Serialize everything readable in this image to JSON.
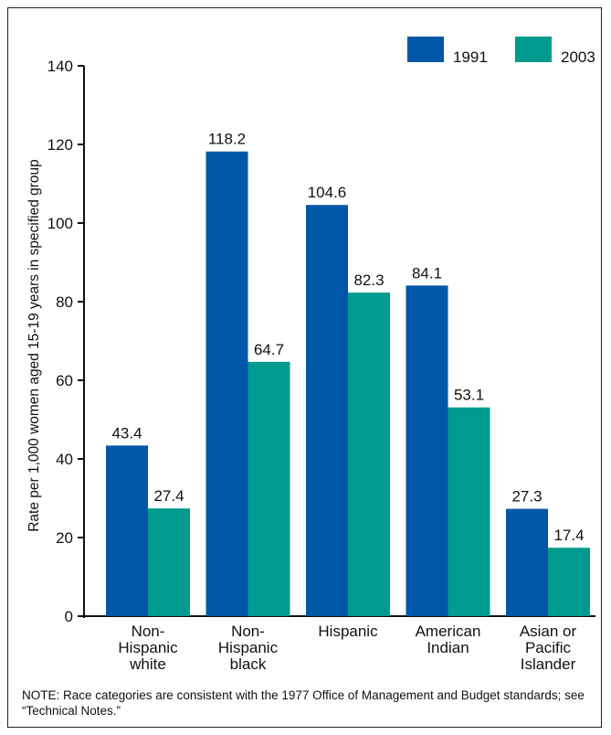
{
  "chart_data": {
    "type": "bar",
    "categories": [
      [
        "Non-",
        "Hispanic",
        "white"
      ],
      [
        "Non-",
        "Hispanic",
        "black"
      ],
      [
        "Hispanic"
      ],
      [
        "American",
        "Indian"
      ],
      [
        "Asian or",
        "Pacific",
        "Islander"
      ]
    ],
    "series": [
      {
        "name": "1991",
        "color": "#0057a8",
        "values": [
          43.4,
          118.2,
          104.6,
          84.1,
          27.3
        ],
        "labels": [
          "43.4",
          "118.2",
          "104.6",
          "84.1",
          "27.3"
        ]
      },
      {
        "name": "2003",
        "color": "#009b8e",
        "values": [
          27.4,
          64.7,
          82.3,
          53.1,
          17.4
        ],
        "labels": [
          "27.4",
          "64.7",
          "82.3",
          "53.1",
          "17.4"
        ]
      }
    ],
    "ylabel": "Rate per 1,000 women aged 15-19 years in specified group",
    "ylim": [
      0,
      140
    ],
    "yticks": [
      "0",
      "20",
      "40",
      "60",
      "80",
      "100",
      "120",
      "140"
    ],
    "legend_position": "top-right",
    "grid": false
  },
  "note": "NOTE: Race categories are consistent with the 1977 Office of Management and Budget standards; see “Technical Notes.”"
}
